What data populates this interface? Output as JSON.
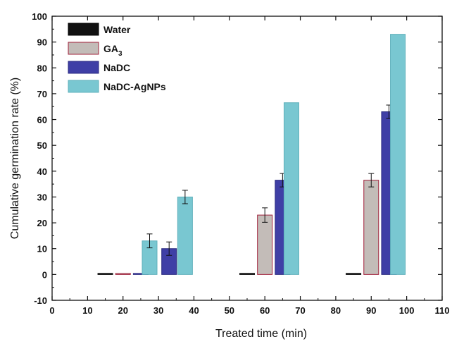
{
  "chart_data": {
    "type": "bar",
    "title": "",
    "xlabel": "Treated time (min)",
    "ylabel": "Cumulative germination rate (%)",
    "xlim": [
      0,
      110
    ],
    "ylim": [
      -10,
      100
    ],
    "x_ticks": [
      0,
      10,
      20,
      30,
      40,
      50,
      60,
      70,
      80,
      90,
      100,
      110
    ],
    "y_ticks": [
      -10,
      0,
      10,
      20,
      30,
      40,
      50,
      60,
      70,
      80,
      90,
      100
    ],
    "grid": false,
    "legend_position": "top-left",
    "groups": [
      30,
      60,
      90
    ],
    "series": [
      {
        "name": "Water",
        "label_main": "Water",
        "label_sub": "",
        "color": "#111111",
        "stroke": "#000000",
        "x": [
          15,
          55,
          85
        ],
        "values": [
          0,
          0,
          0
        ],
        "errors": [
          0,
          0,
          0
        ]
      },
      {
        "name": "GA3",
        "label_main": "GA",
        "label_sub": "3",
        "color": "#c3bcb8",
        "stroke": "#a0203a",
        "x": [
          20,
          60,
          90
        ],
        "values": [
          0,
          23,
          36.5
        ],
        "errors": [
          0,
          2.8,
          2.6
        ]
      },
      {
        "name": "NaDC",
        "label_main": "NaDC",
        "label_sub": "",
        "color": "#3f3fa6",
        "stroke": "#2a2a80",
        "x": [
          25,
          65,
          95
        ],
        "values": [
          0,
          36.5,
          63
        ],
        "errors": [
          0,
          2.6,
          2.6
        ]
      },
      {
        "name": "NaDC-AgNPs",
        "label_main": "NaDC-AgNPs",
        "label_sub": "",
        "color": "#79c7d1",
        "stroke": "#5fb0bb",
        "x": [
          27.5,
          67.5,
          97.5
        ],
        "values": [
          13,
          66.5,
          93
        ],
        "errors": [
          2.7,
          0,
          0
        ]
      }
    ],
    "extra_bars": [
      {
        "series": "NaDC",
        "x": 33,
        "value": 10,
        "error": 2.6,
        "color": "#3f3fa6",
        "stroke": "#2a2a80"
      },
      {
        "series": "NaDC-AgNPs",
        "x": 37.5,
        "value": 30,
        "error": 2.6,
        "color": "#79c7d1",
        "stroke": "#5fb0bb"
      }
    ]
  }
}
